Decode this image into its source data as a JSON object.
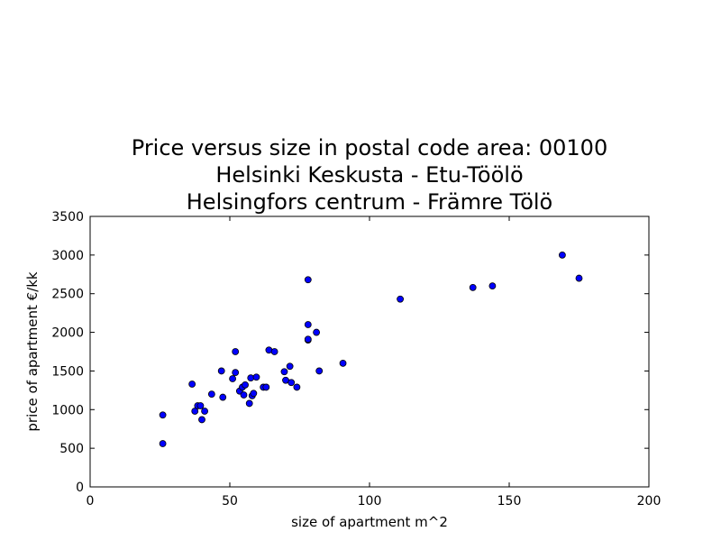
{
  "chart_data": {
    "type": "scatter",
    "title_lines": [
      "Price versus size in postal code area: 00100",
      "Helsinki Keskusta - Etu-Töölö",
      "Helsingfors centrum - Främre Tölö"
    ],
    "xlabel": "size of apartment m^2",
    "ylabel": "price of apartment €/kk",
    "xlim": [
      0,
      200
    ],
    "ylim": [
      0,
      3500
    ],
    "x_ticks": [
      0,
      50,
      100,
      150,
      200
    ],
    "y_ticks": [
      0,
      500,
      1000,
      1500,
      2000,
      2500,
      3000,
      3500
    ],
    "grid": false,
    "legend": "none",
    "marker_color": "#0000ff",
    "series": [
      {
        "points": [
          [
            26,
            560
          ],
          [
            26,
            930
          ],
          [
            36.5,
            1330
          ],
          [
            37.5,
            980
          ],
          [
            38.5,
            1050
          ],
          [
            39.5,
            1050
          ],
          [
            40,
            870
          ],
          [
            41,
            980
          ],
          [
            43.5,
            1200
          ],
          [
            47,
            1500
          ],
          [
            47.5,
            1160
          ],
          [
            51,
            1400
          ],
          [
            52,
            1480
          ],
          [
            52,
            1750
          ],
          [
            53.5,
            1240
          ],
          [
            54.5,
            1290
          ],
          [
            55,
            1190
          ],
          [
            55.5,
            1320
          ],
          [
            57,
            1080
          ],
          [
            57.5,
            1410
          ],
          [
            58,
            1180
          ],
          [
            58.5,
            1210
          ],
          [
            59.5,
            1420
          ],
          [
            62,
            1290
          ],
          [
            63,
            1290
          ],
          [
            64,
            1770
          ],
          [
            66,
            1750
          ],
          [
            69.5,
            1490
          ],
          [
            70,
            1380
          ],
          [
            71.5,
            1560
          ],
          [
            72,
            1350
          ],
          [
            74,
            1290
          ],
          [
            78,
            2680
          ],
          [
            78,
            2100
          ],
          [
            78,
            1900
          ],
          [
            78,
            1910
          ],
          [
            81,
            2000
          ],
          [
            82,
            1500
          ],
          [
            90.5,
            1600
          ],
          [
            111,
            2430
          ],
          [
            137,
            2580
          ],
          [
            144,
            2600
          ],
          [
            169,
            3000
          ],
          [
            175,
            2700
          ]
        ]
      }
    ]
  }
}
